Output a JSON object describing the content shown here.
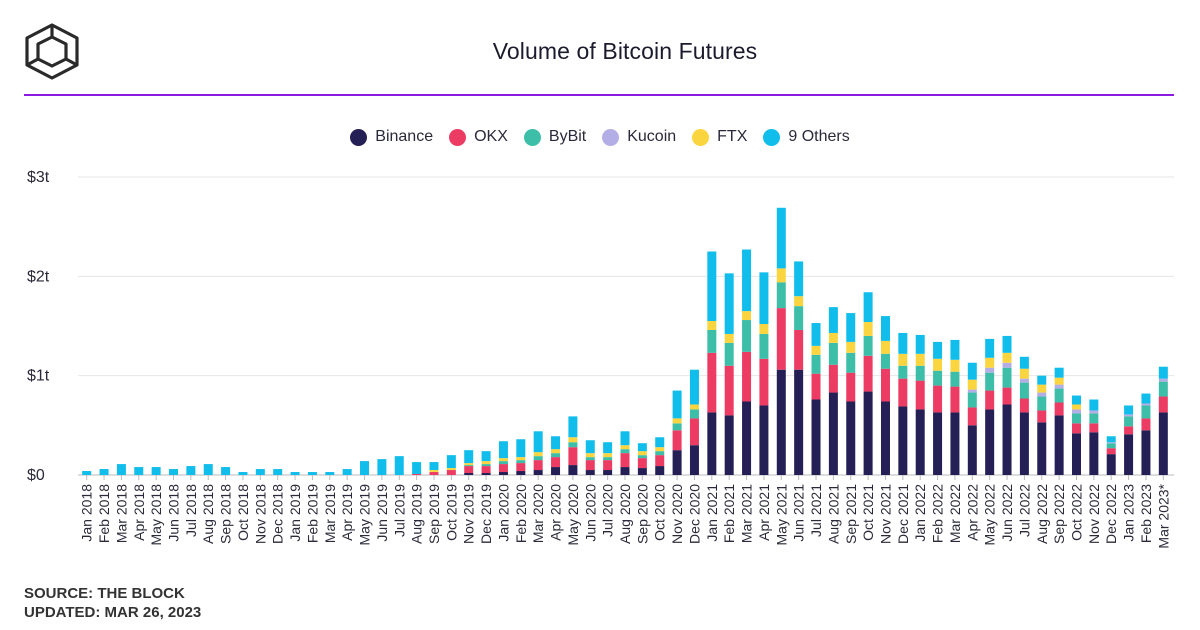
{
  "chart_data": {
    "type": "bar",
    "stacked": true,
    "title": "Volume of Bitcoin Futures",
    "xlabel": "",
    "ylabel": "",
    "ylim": [
      0,
      3
    ],
    "yticks": [
      0,
      1,
      2,
      3
    ],
    "ytick_labels": [
      "$0",
      "$1t",
      "$2t",
      "$3t"
    ],
    "grid": true,
    "legend_position": "top-center",
    "categories": [
      "Jan 2018",
      "Feb 2018",
      "Mar 2018",
      "Apr 2018",
      "May 2018",
      "Jun 2018",
      "Jul 2018",
      "Aug 2018",
      "Sep 2018",
      "Oct 2018",
      "Nov 2018",
      "Dec 2018",
      "Jan 2019",
      "Feb 2019",
      "Mar 2019",
      "Apr 2019",
      "May 2019",
      "Jun 2019",
      "Jul 2019",
      "Aug 2019",
      "Sep 2019",
      "Oct 2019",
      "Nov 2019",
      "Dec 2019",
      "Jan 2020",
      "Feb 2020",
      "Mar 2020",
      "Apr 2020",
      "May 2020",
      "Jun 2020",
      "Jul 2020",
      "Aug 2020",
      "Sep 2020",
      "Oct 2020",
      "Nov 2020",
      "Dec 2020",
      "Jan 2021",
      "Feb 2021",
      "Mar 2021",
      "Apr 2021",
      "May 2021",
      "Jun 2021",
      "Jul 2021",
      "Aug 2021",
      "Sep 2021",
      "Oct 2021",
      "Nov 2021",
      "Dec 2021",
      "Jan 2022",
      "Feb 2022",
      "Mar 2022",
      "Apr 2022",
      "May 2022",
      "Jun 2022",
      "Jul 2022",
      "Aug 2022",
      "Sep 2022",
      "Oct 2022",
      "Nov 2022",
      "Dec 2022",
      "Jan 2023",
      "Feb 2023",
      "Mar 2023*"
    ],
    "series": [
      {
        "name": "Binance",
        "color": "#241f55",
        "values": [
          0,
          0,
          0,
          0,
          0,
          0,
          0,
          0,
          0,
          0,
          0,
          0,
          0,
          0,
          0,
          0,
          0,
          0,
          0,
          0,
          0,
          0,
          0.02,
          0.02,
          0.03,
          0.04,
          0.05,
          0.08,
          0.1,
          0.05,
          0.05,
          0.08,
          0.07,
          0.09,
          0.25,
          0.3,
          0.63,
          0.6,
          0.74,
          0.7,
          1.06,
          1.06,
          0.76,
          0.83,
          0.74,
          0.84,
          0.74,
          0.69,
          0.66,
          0.63,
          0.63,
          0.5,
          0.66,
          0.71,
          0.63,
          0.53,
          0.6,
          0.42,
          0.43,
          0.21,
          0.41,
          0.45,
          0.63
        ]
      },
      {
        "name": "OKX",
        "color": "#ec3c64",
        "values": [
          0,
          0,
          0,
          0,
          0,
          0,
          0,
          0,
          0,
          0,
          0,
          0,
          0,
          0,
          0,
          0,
          0,
          0,
          0,
          0.01,
          0.03,
          0.05,
          0.07,
          0.07,
          0.08,
          0.08,
          0.1,
          0.1,
          0.18,
          0.1,
          0.1,
          0.14,
          0.1,
          0.11,
          0.2,
          0.27,
          0.6,
          0.5,
          0.5,
          0.47,
          0.62,
          0.4,
          0.26,
          0.28,
          0.29,
          0.36,
          0.33,
          0.28,
          0.29,
          0.27,
          0.26,
          0.18,
          0.19,
          0.17,
          0.14,
          0.12,
          0.13,
          0.1,
          0.09,
          0.06,
          0.08,
          0.12,
          0.16
        ]
      },
      {
        "name": "ByBit",
        "color": "#3dbea9",
        "values": [
          0,
          0,
          0,
          0,
          0,
          0,
          0,
          0,
          0,
          0,
          0,
          0,
          0,
          0,
          0,
          0,
          0,
          0,
          0,
          0,
          0,
          0,
          0.01,
          0.02,
          0.03,
          0.03,
          0.04,
          0.04,
          0.05,
          0.03,
          0.03,
          0.04,
          0.03,
          0.04,
          0.07,
          0.09,
          0.23,
          0.23,
          0.32,
          0.25,
          0.26,
          0.24,
          0.19,
          0.22,
          0.2,
          0.2,
          0.15,
          0.13,
          0.15,
          0.15,
          0.15,
          0.15,
          0.18,
          0.2,
          0.16,
          0.14,
          0.14,
          0.1,
          0.1,
          0.05,
          0.1,
          0.13,
          0.15
        ]
      },
      {
        "name": "Kucoin",
        "color": "#b4aee6",
        "values": [
          0,
          0,
          0,
          0,
          0,
          0,
          0,
          0,
          0,
          0,
          0,
          0,
          0,
          0,
          0,
          0,
          0,
          0,
          0,
          0,
          0,
          0,
          0,
          0,
          0,
          0,
          0,
          0,
          0,
          0,
          0,
          0,
          0,
          0,
          0,
          0,
          0,
          0,
          0,
          0,
          0,
          0,
          0,
          0,
          0,
          0,
          0,
          0,
          0,
          0,
          0,
          0.03,
          0.05,
          0.05,
          0.04,
          0.04,
          0.04,
          0.04,
          0.03,
          0.01,
          0.02,
          0.02,
          0.03
        ]
      },
      {
        "name": "FTX",
        "color": "#fbd540",
        "values": [
          0,
          0,
          0,
          0,
          0,
          0,
          0,
          0,
          0,
          0,
          0,
          0,
          0,
          0,
          0,
          0,
          0,
          0,
          0,
          0,
          0.02,
          0.02,
          0.02,
          0.03,
          0.03,
          0.03,
          0.04,
          0.04,
          0.05,
          0.04,
          0.04,
          0.04,
          0.04,
          0.04,
          0.05,
          0.05,
          0.09,
          0.09,
          0.09,
          0.1,
          0.14,
          0.1,
          0.09,
          0.1,
          0.11,
          0.14,
          0.13,
          0.12,
          0.12,
          0.12,
          0.12,
          0.1,
          0.1,
          0.1,
          0.1,
          0.08,
          0.07,
          0.05,
          0,
          0,
          0,
          0,
          0
        ]
      },
      {
        "name": "9 Others",
        "color": "#11bdeb",
        "values": [
          0.04,
          0.06,
          0.11,
          0.08,
          0.08,
          0.06,
          0.09,
          0.11,
          0.08,
          0.03,
          0.06,
          0.06,
          0.03,
          0.03,
          0.03,
          0.06,
          0.14,
          0.16,
          0.19,
          0.12,
          0.08,
          0.13,
          0.13,
          0.1,
          0.17,
          0.18,
          0.21,
          0.13,
          0.21,
          0.13,
          0.11,
          0.14,
          0.08,
          0.1,
          0.28,
          0.35,
          0.7,
          0.61,
          0.62,
          0.52,
          0.61,
          0.35,
          0.23,
          0.26,
          0.29,
          0.3,
          0.25,
          0.21,
          0.19,
          0.17,
          0.2,
          0.17,
          0.19,
          0.17,
          0.12,
          0.09,
          0.1,
          0.09,
          0.11,
          0.06,
          0.09,
          0.1,
          0.12
        ]
      }
    ]
  },
  "footer": {
    "source": "SOURCE: THE BLOCK",
    "updated": "UPDATED: MAR 26, 2023"
  }
}
